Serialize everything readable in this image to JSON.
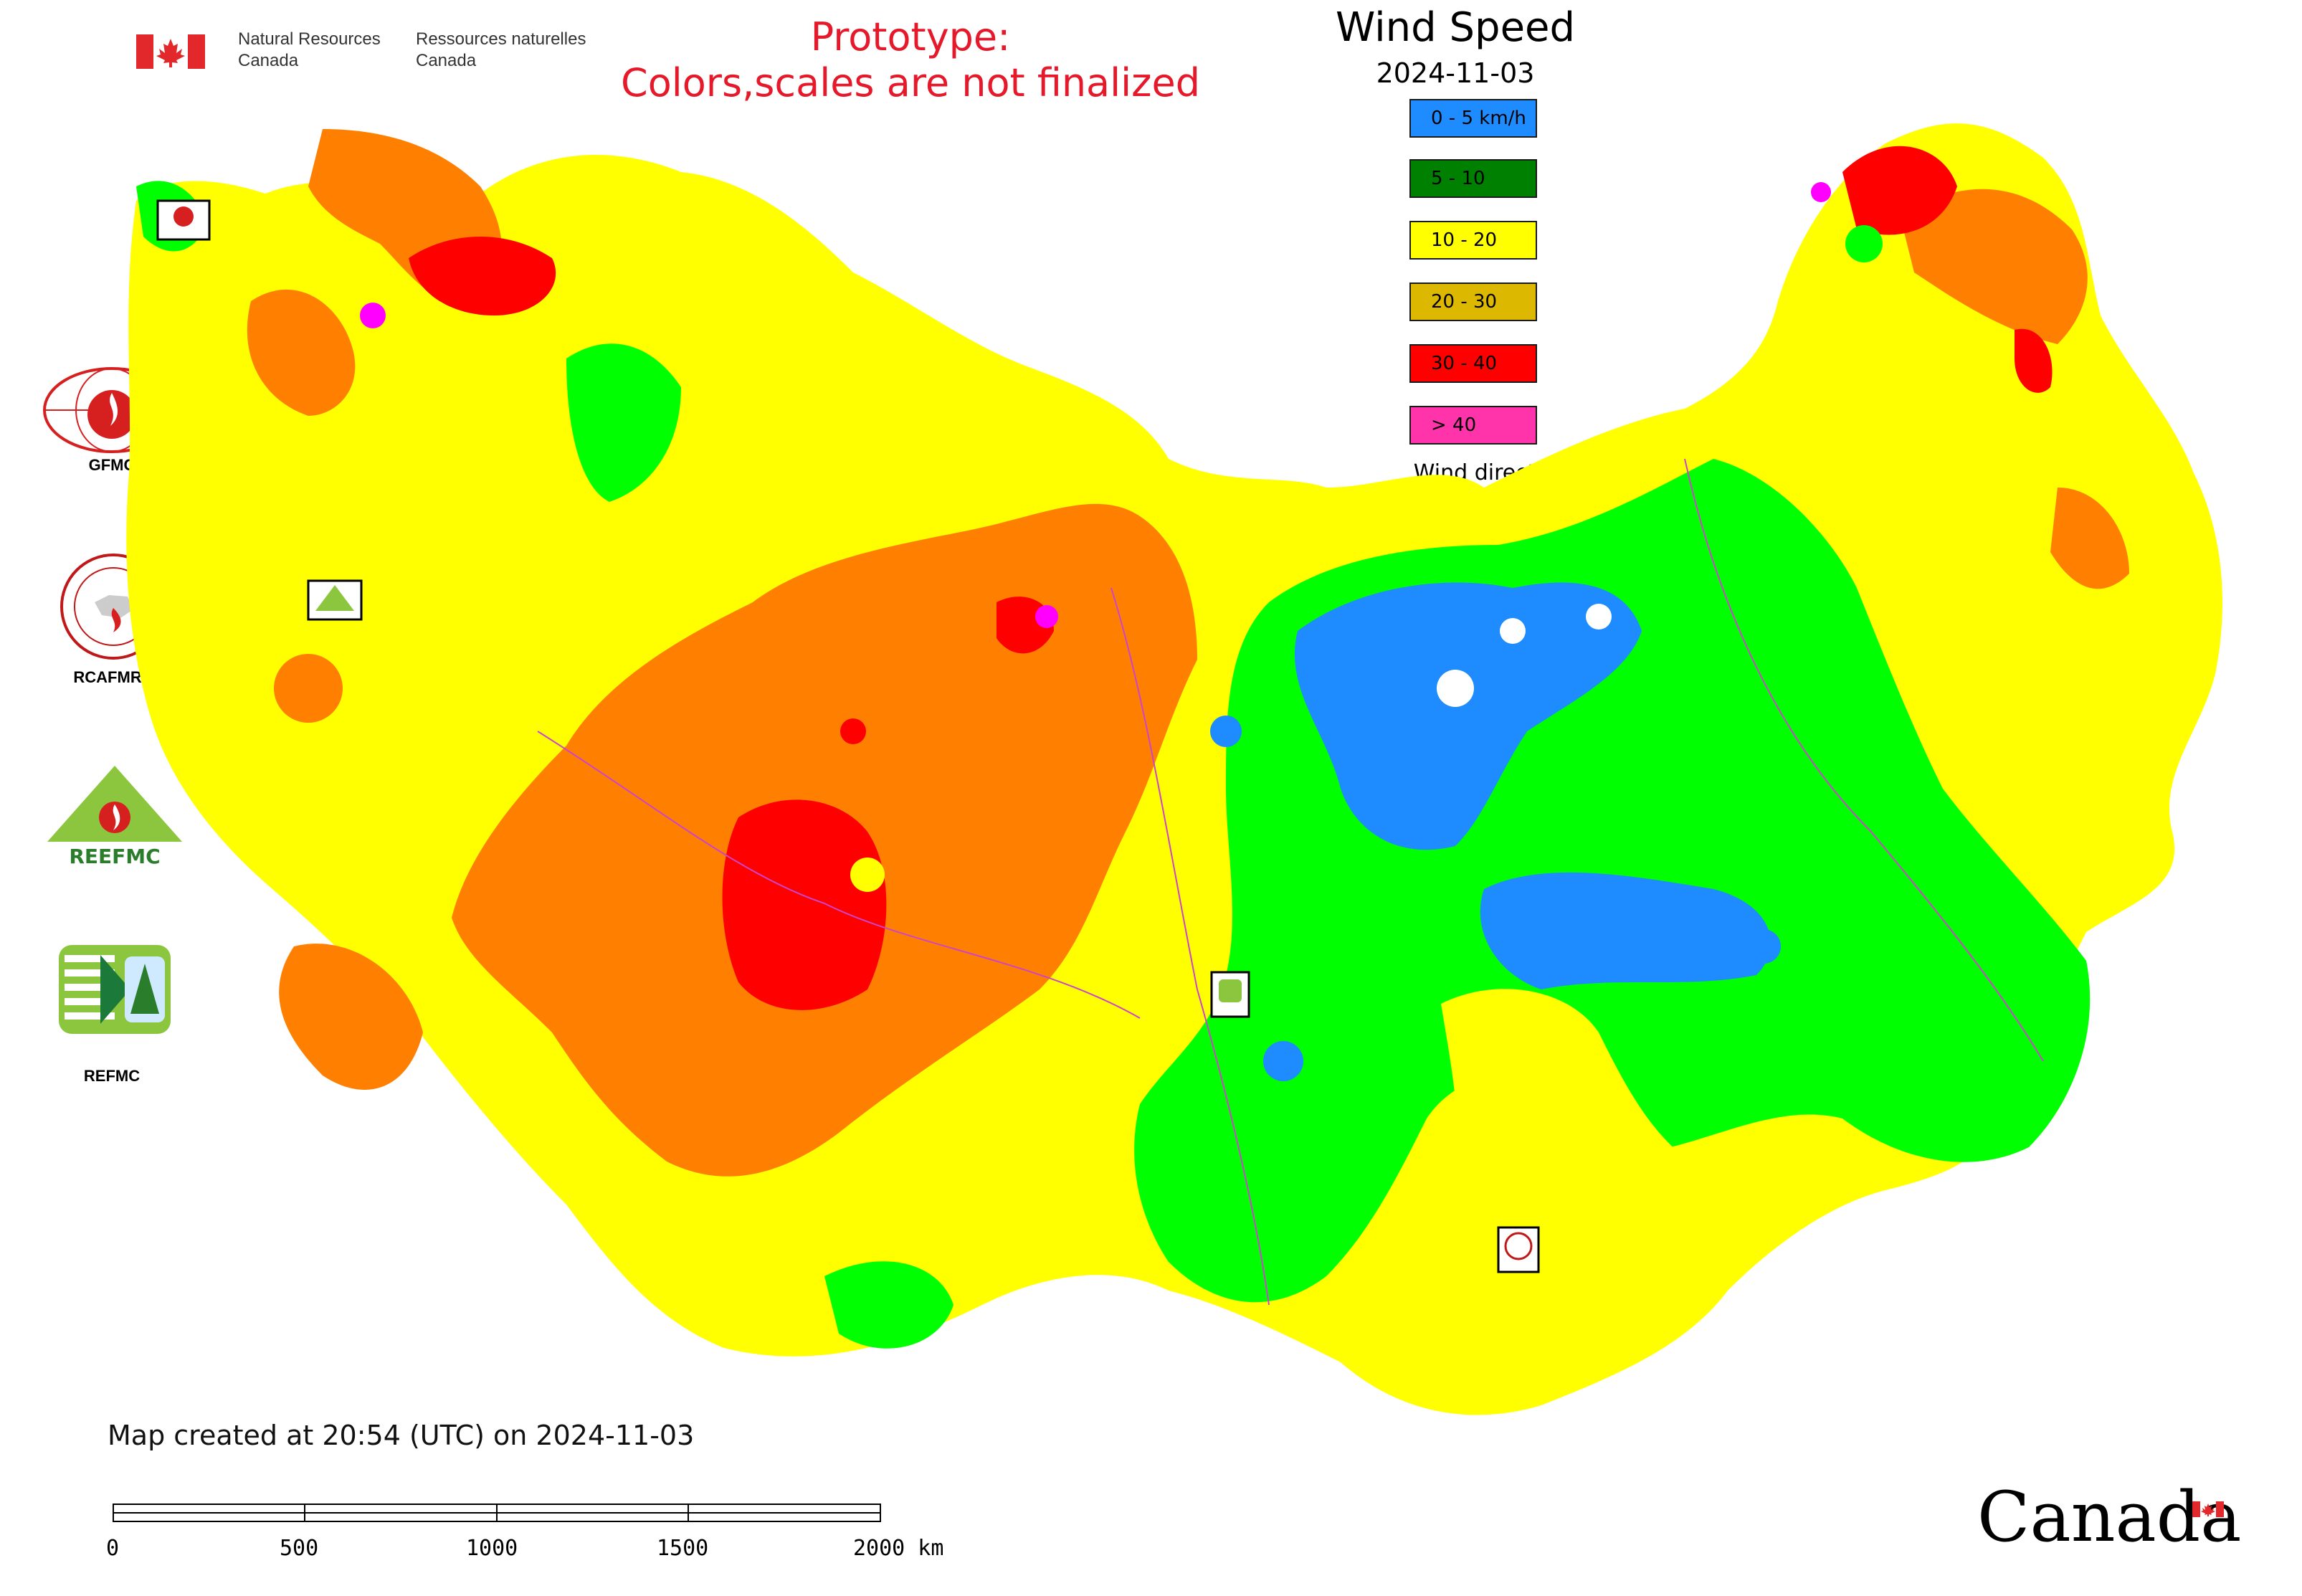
{
  "header": {
    "org_en": [
      "Natural Resources",
      "Canada"
    ],
    "org_fr": [
      "Ressources naturelles",
      "Canada"
    ],
    "prototype_line1": "Prototype:",
    "prototype_line2": "Colors,scales are not finalized",
    "title": "Wind Speed",
    "date": "2024-11-03"
  },
  "legend": {
    "items": [
      {
        "label": "0 - 5 km/h",
        "color": "#1e8cff"
      },
      {
        "label": "5 - 10",
        "color": "#008000"
      },
      {
        "label": "10 - 20",
        "color": "#ffff00"
      },
      {
        "label": "20 - 30",
        "color": "#ddb800"
      },
      {
        "label": "30 - 40",
        "color": "#ff0000"
      },
      {
        "label": "> 40",
        "color": "#ff33aa"
      }
    ],
    "wind_direction_label": "Wind direction"
  },
  "side_logos": [
    {
      "label": "GFMC",
      "icon": "gfmc-logo"
    },
    {
      "label": "RCAFMRC",
      "icon": "rcafmrc-logo"
    },
    {
      "label": "",
      "icon": "reefmc-triangle-logo",
      "wordmark": "REEFMC"
    },
    {
      "label": "REFMC",
      "icon": "refmc-logo"
    }
  ],
  "map_colors": {
    "yellow": "#ffff00",
    "orange": "#ff8000",
    "red": "#ff0000",
    "green": "#00ff00",
    "blue": "#1e8cff",
    "magenta": "#ff00ff",
    "border": "#cc44cc"
  },
  "footer": {
    "created_text": "Map created at 20:54 (UTC) on 2024-11-03",
    "scale_ticks": [
      "0",
      "500",
      "1000",
      "1500",
      "2000 km"
    ],
    "canada_wordmark": "Canada"
  }
}
